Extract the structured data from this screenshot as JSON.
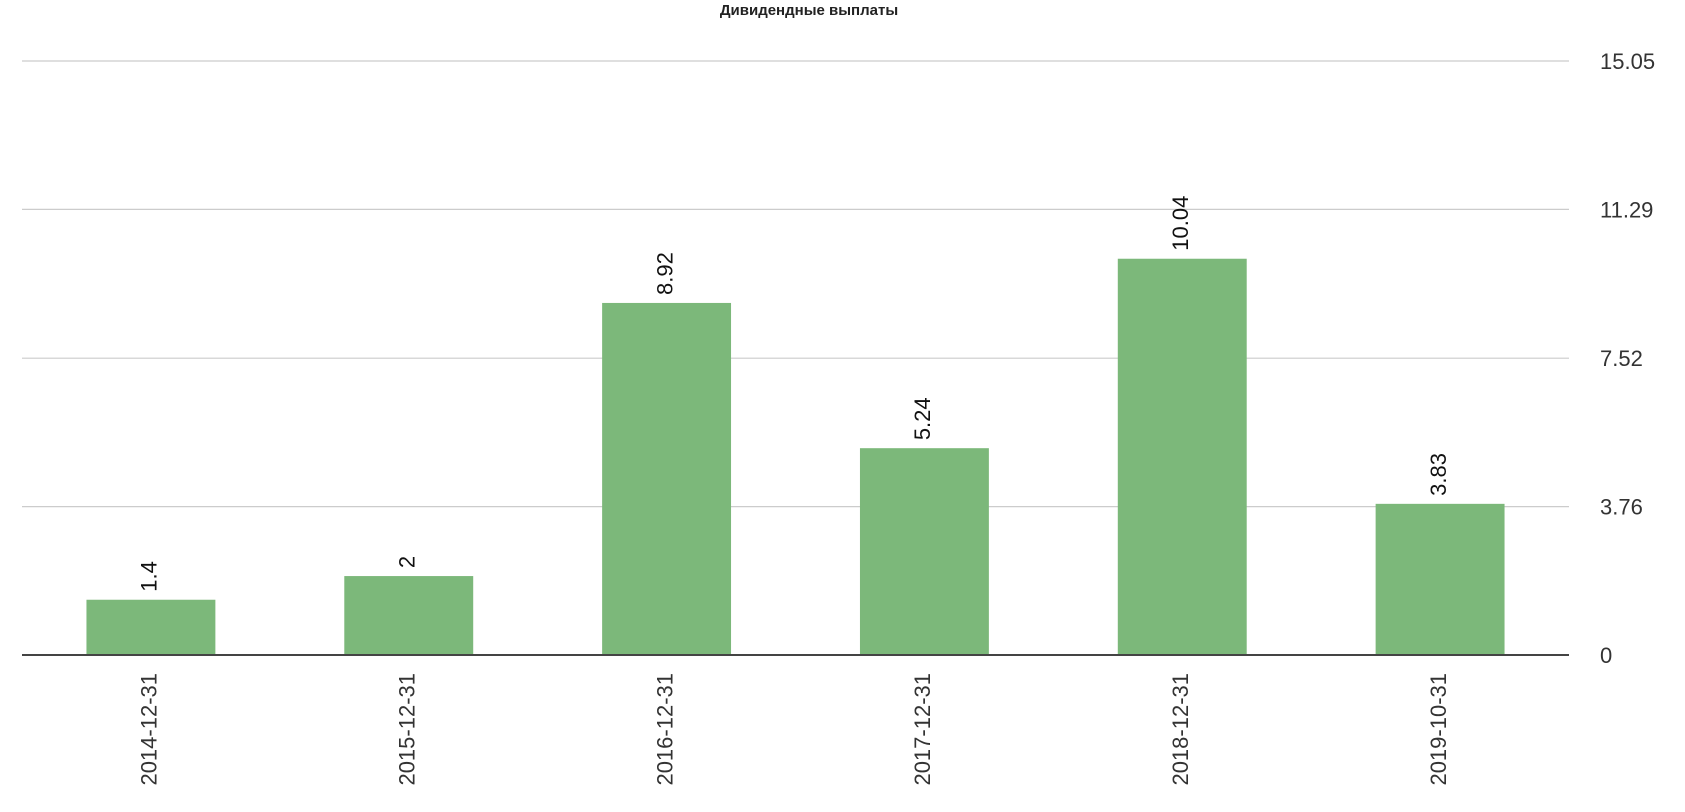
{
  "chart_data": {
    "type": "bar",
    "title": "Дивидендные выплаты",
    "categories": [
      "2014-12-31",
      "2015-12-31",
      "2016-12-31",
      "2017-12-31",
      "2018-12-31",
      "2019-10-31"
    ],
    "values": [
      1.4,
      2,
      8.92,
      5.24,
      10.04,
      3.83
    ],
    "color": "#7cb87a",
    "ylim": [
      0,
      15.05
    ],
    "yticks": [
      0,
      3.76,
      7.52,
      11.29,
      15.05
    ],
    "grid": true
  }
}
